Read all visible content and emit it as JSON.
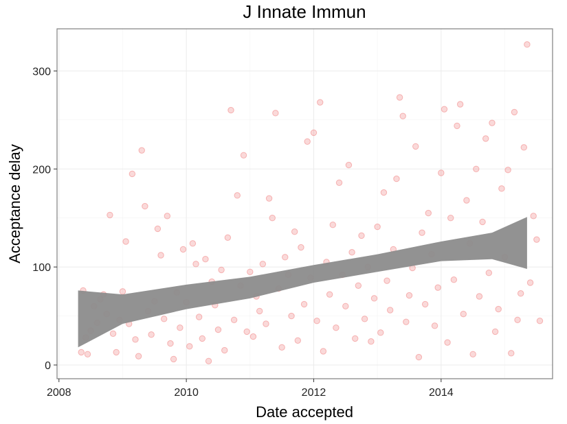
{
  "chart_data": {
    "type": "scatter",
    "title": "J Innate Immun",
    "xlabel": "Date accepted",
    "ylabel": "Acceptance delay",
    "xlim": [
      2007.97,
      2015.75
    ],
    "ylim": [
      -14,
      343
    ],
    "x_ticks": [
      2008,
      2010,
      2012,
      2014
    ],
    "y_ticks": [
      0,
      100,
      200,
      300
    ],
    "grid": true,
    "point_color": "#f08080",
    "band_color": "#8c8c8c",
    "trend_band": {
      "x": [
        2008.3,
        2009.0,
        2010.0,
        2011.0,
        2012.0,
        2013.0,
        2014.0,
        2014.8,
        2015.35
      ],
      "lower": [
        18,
        42,
        57,
        68,
        84,
        95,
        106,
        108,
        98
      ],
      "upper": [
        76,
        72,
        82,
        90,
        102,
        113,
        126,
        135,
        151
      ]
    },
    "points": [
      [
        2008.35,
        13
      ],
      [
        2008.38,
        76
      ],
      [
        2008.42,
        28
      ],
      [
        2008.45,
        11
      ],
      [
        2008.5,
        35
      ],
      [
        2008.55,
        60
      ],
      [
        2008.6,
        43
      ],
      [
        2008.65,
        67
      ],
      [
        2008.7,
        72
      ],
      [
        2008.75,
        52
      ],
      [
        2008.8,
        153
      ],
      [
        2008.85,
        32
      ],
      [
        2008.9,
        13
      ],
      [
        2008.95,
        46
      ],
      [
        2009.0,
        75
      ],
      [
        2009.05,
        126
      ],
      [
        2009.1,
        42
      ],
      [
        2009.15,
        195
      ],
      [
        2009.2,
        26
      ],
      [
        2009.25,
        9
      ],
      [
        2009.3,
        219
      ],
      [
        2009.35,
        162
      ],
      [
        2009.4,
        55
      ],
      [
        2009.45,
        31
      ],
      [
        2009.5,
        65
      ],
      [
        2009.55,
        139
      ],
      [
        2009.6,
        112
      ],
      [
        2009.65,
        47
      ],
      [
        2009.7,
        152
      ],
      [
        2009.75,
        22
      ],
      [
        2009.8,
        6
      ],
      [
        2009.85,
        74
      ],
      [
        2009.9,
        38
      ],
      [
        2009.95,
        118
      ],
      [
        2010.0,
        64
      ],
      [
        2010.05,
        19
      ],
      [
        2010.1,
        124
      ],
      [
        2010.15,
        103
      ],
      [
        2010.2,
        49
      ],
      [
        2010.25,
        27
      ],
      [
        2010.3,
        108
      ],
      [
        2010.35,
        4
      ],
      [
        2010.4,
        85
      ],
      [
        2010.45,
        61
      ],
      [
        2010.5,
        36
      ],
      [
        2010.55,
        97
      ],
      [
        2010.6,
        15
      ],
      [
        2010.65,
        130
      ],
      [
        2010.7,
        260
      ],
      [
        2010.75,
        46
      ],
      [
        2010.8,
        173
      ],
      [
        2010.85,
        81
      ],
      [
        2010.9,
        214
      ],
      [
        2010.95,
        34
      ],
      [
        2011.0,
        95
      ],
      [
        2011.05,
        29
      ],
      [
        2011.1,
        70
      ],
      [
        2011.15,
        55
      ],
      [
        2011.2,
        103
      ],
      [
        2011.25,
        42
      ],
      [
        2011.3,
        170
      ],
      [
        2011.35,
        150
      ],
      [
        2011.4,
        257
      ],
      [
        2011.45,
        78
      ],
      [
        2011.5,
        18
      ],
      [
        2011.55,
        110
      ],
      [
        2011.6,
        92
      ],
      [
        2011.65,
        50
      ],
      [
        2011.7,
        136
      ],
      [
        2011.75,
        25
      ],
      [
        2011.8,
        120
      ],
      [
        2011.85,
        62
      ],
      [
        2011.9,
        228
      ],
      [
        2011.95,
        89
      ],
      [
        2012.0,
        237
      ],
      [
        2012.05,
        45
      ],
      [
        2012.1,
        268
      ],
      [
        2012.15,
        14
      ],
      [
        2012.2,
        105
      ],
      [
        2012.25,
        72
      ],
      [
        2012.3,
        143
      ],
      [
        2012.35,
        38
      ],
      [
        2012.4,
        186
      ],
      [
        2012.45,
        92
      ],
      [
        2012.5,
        60
      ],
      [
        2012.55,
        204
      ],
      [
        2012.6,
        115
      ],
      [
        2012.65,
        27
      ],
      [
        2012.7,
        81
      ],
      [
        2012.75,
        132
      ],
      [
        2012.8,
        47
      ],
      [
        2012.85,
        100
      ],
      [
        2012.9,
        24
      ],
      [
        2012.95,
        68
      ],
      [
        2013.0,
        141
      ],
      [
        2013.05,
        33
      ],
      [
        2013.1,
        176
      ],
      [
        2013.15,
        86
      ],
      [
        2013.2,
        56
      ],
      [
        2013.25,
        118
      ],
      [
        2013.3,
        190
      ],
      [
        2013.35,
        273
      ],
      [
        2013.4,
        254
      ],
      [
        2013.45,
        44
      ],
      [
        2013.5,
        71
      ],
      [
        2013.55,
        99
      ],
      [
        2013.6,
        223
      ],
      [
        2013.65,
        8
      ],
      [
        2013.7,
        135
      ],
      [
        2013.75,
        62
      ],
      [
        2013.8,
        155
      ],
      [
        2013.85,
        113
      ],
      [
        2013.9,
        40
      ],
      [
        2013.95,
        79
      ],
      [
        2014.0,
        196
      ],
      [
        2014.05,
        261
      ],
      [
        2014.1,
        23
      ],
      [
        2014.15,
        150
      ],
      [
        2014.2,
        87
      ],
      [
        2014.25,
        244
      ],
      [
        2014.3,
        266
      ],
      [
        2014.35,
        52
      ],
      [
        2014.4,
        168
      ],
      [
        2014.45,
        124
      ],
      [
        2014.5,
        11
      ],
      [
        2014.55,
        200
      ],
      [
        2014.6,
        70
      ],
      [
        2014.65,
        146
      ],
      [
        2014.7,
        231
      ],
      [
        2014.75,
        94
      ],
      [
        2014.8,
        247
      ],
      [
        2014.85,
        34
      ],
      [
        2014.9,
        57
      ],
      [
        2014.95,
        180
      ],
      [
        2015.0,
        110
      ],
      [
        2015.05,
        199
      ],
      [
        2015.1,
        12
      ],
      [
        2015.15,
        258
      ],
      [
        2015.2,
        46
      ],
      [
        2015.25,
        73
      ],
      [
        2015.3,
        222
      ],
      [
        2015.35,
        327
      ],
      [
        2015.4,
        84
      ],
      [
        2015.45,
        152
      ],
      [
        2015.5,
        128
      ],
      [
        2015.55,
        45
      ]
    ]
  }
}
